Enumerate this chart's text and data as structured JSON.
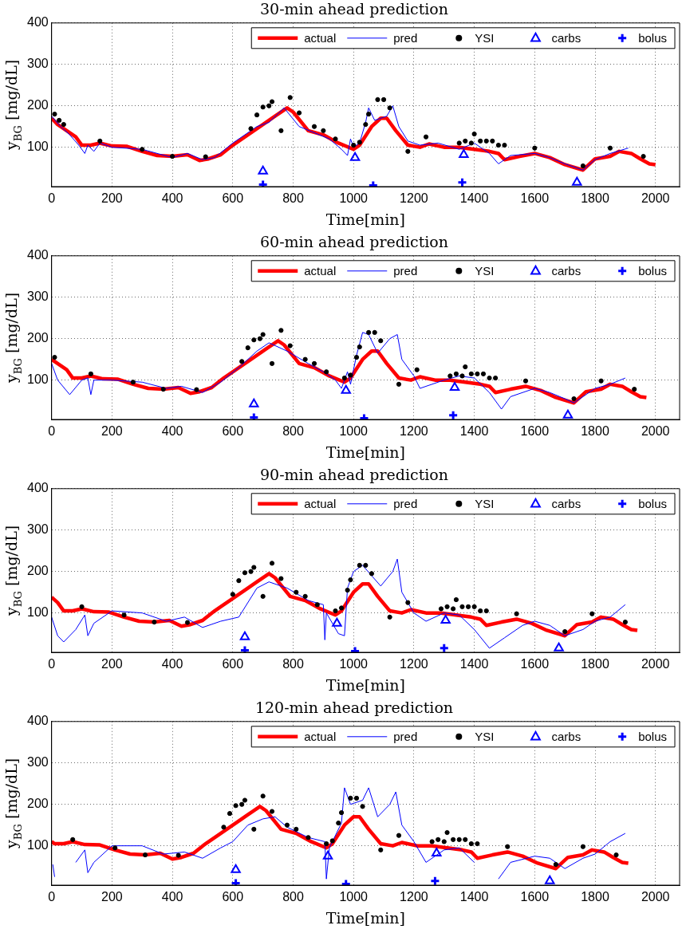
{
  "chart_data": [
    {
      "type": "line",
      "title": "30-min ahead prediction",
      "xlabel": "Time[min]",
      "ylabel": "y$_{BG}$ [mg/dL]",
      "xlim": [
        0,
        2080
      ],
      "ylim": [
        5,
        400
      ],
      "xticks": [
        0,
        200,
        400,
        600,
        800,
        1000,
        1200,
        1400,
        1600,
        1800,
        2000
      ],
      "yticks": [
        100,
        200,
        300,
        400
      ],
      "grid": true,
      "legend": "top right",
      "series": [
        {
          "name": "actual",
          "color": "#ff0000",
          "marker": "none",
          "x": [
            0,
            20,
            50,
            80,
            100,
            130,
            160,
            200,
            250,
            300,
            350,
            400,
            450,
            490,
            520,
            560,
            600,
            650,
            700,
            740,
            780,
            800,
            850,
            900,
            950,
            1000,
            1020,
            1060,
            1090,
            1110,
            1140,
            1180,
            1220,
            1250,
            1300,
            1350,
            1400,
            1450,
            1480,
            1500,
            1550,
            1600,
            1650,
            1700,
            1760,
            1800,
            1850,
            1880,
            1920,
            1950,
            1980,
            2000
          ],
          "values": [
            170,
            155,
            140,
            125,
            105,
            105,
            110,
            103,
            102,
            90,
            80,
            78,
            82,
            68,
            72,
            82,
            105,
            130,
            155,
            175,
            195,
            185,
            140,
            130,
            110,
            95,
            105,
            150,
            170,
            170,
            140,
            105,
            100,
            108,
            100,
            100,
            95,
            90,
            85,
            70,
            78,
            85,
            75,
            58,
            45,
            72,
            78,
            90,
            85,
            72,
            60,
            58
          ]
        },
        {
          "name": "pred",
          "color": "#0000ff",
          "marker": "none",
          "x": [
            0,
            30,
            60,
            90,
            110,
            120,
            140,
            160,
            200,
            300,
            400,
            450,
            500,
            540,
            600,
            680,
            720,
            770,
            820,
            870,
            920,
            960,
            980,
            990,
            1000,
            1020,
            1040,
            1050,
            1070,
            1110,
            1130,
            1150,
            1180,
            1220,
            1280,
            1350,
            1400,
            1450,
            1480,
            1520,
            1600,
            1650,
            1700,
            1760,
            1800,
            1850,
            1910
          ],
          "values": [
            175,
            150,
            130,
            105,
            85,
            105,
            90,
            110,
            100,
            95,
            75,
            85,
            70,
            75,
            110,
            150,
            160,
            195,
            150,
            135,
            120,
            95,
            80,
            120,
            100,
            110,
            160,
            195,
            165,
            175,
            200,
            150,
            115,
            105,
            110,
            95,
            110,
            85,
            60,
            80,
            85,
            75,
            60,
            45,
            70,
            85,
            98
          ]
        },
        {
          "name": "YSI",
          "type": "scatter",
          "color": "#000000",
          "marker": "circle",
          "x": [
            10,
            25,
            40,
            160,
            300,
            400,
            510,
            660,
            680,
            700,
            720,
            730,
            760,
            790,
            820,
            870,
            900,
            940,
            1000,
            1020,
            1040,
            1050,
            1080,
            1100,
            1120,
            1180,
            1240,
            1350,
            1370,
            1390,
            1400,
            1420,
            1440,
            1460,
            1480,
            1500,
            1600,
            1760,
            1850,
            1960
          ],
          "values": [
            180,
            165,
            155,
            115,
            95,
            78,
            77,
            145,
            178,
            197,
            200,
            210,
            140,
            220,
            183,
            150,
            140,
            120,
            105,
            112,
            155,
            180,
            215,
            215,
            195,
            90,
            125,
            110,
            115,
            110,
            132,
            115,
            115,
            115,
            105,
            105,
            98,
            55,
            98,
            78
          ]
        },
        {
          "name": "carbs",
          "type": "scatter",
          "color": "#0000ff",
          "marker": "triangle",
          "x": [
            700,
            1005,
            1365,
            1740
          ],
          "values": [
            42,
            75,
            82,
            15
          ]
        },
        {
          "name": "bolus",
          "type": "scatter",
          "color": "#0000ff",
          "marker": "cross",
          "x": [
            700,
            1065,
            1360
          ],
          "values": [
            10,
            8,
            15
          ]
        }
      ]
    },
    {
      "type": "line",
      "title": "60-min ahead prediction",
      "xlabel": "Time[min]",
      "ylabel": "y$_{BG}$ [mg/dL]",
      "xlim": [
        0,
        2080
      ],
      "ylim": [
        5,
        400
      ],
      "xticks": [
        0,
        200,
        400,
        600,
        800,
        1000,
        1200,
        1400,
        1600,
        1800,
        2000
      ],
      "yticks": [
        100,
        200,
        300,
        400
      ],
      "grid": true,
      "legend": "top right",
      "series": [
        {
          "name": "actual",
          "color": "#ff0000",
          "marker": "none",
          "x": [
            0,
            20,
            50,
            70,
            100,
            130,
            170,
            220,
            270,
            320,
            370,
            420,
            460,
            490,
            530,
            570,
            620,
            670,
            710,
            750,
            770,
            820,
            870,
            920,
            970,
            990,
            1030,
            1060,
            1080,
            1110,
            1150,
            1190,
            1220,
            1270,
            1320,
            1370,
            1420,
            1450,
            1470,
            1520,
            1570,
            1620,
            1670,
            1730,
            1770,
            1820,
            1850,
            1890,
            1920,
            1950,
            1970
          ],
          "values": [
            150,
            140,
            125,
            105,
            105,
            110,
            103,
            102,
            90,
            80,
            78,
            82,
            68,
            72,
            82,
            105,
            130,
            155,
            175,
            195,
            185,
            140,
            130,
            110,
            95,
            105,
            150,
            170,
            170,
            140,
            105,
            100,
            108,
            100,
            100,
            95,
            90,
            85,
            70,
            78,
            85,
            75,
            58,
            45,
            72,
            78,
            90,
            85,
            72,
            60,
            58
          ]
        },
        {
          "name": "pred",
          "color": "#0000ff",
          "marker": "none",
          "x": [
            0,
            20,
            60,
            100,
            120,
            130,
            140,
            200,
            300,
            380,
            430,
            500,
            560,
            620,
            680,
            720,
            780,
            850,
            900,
            940,
            960,
            980,
            990,
            1010,
            1030,
            1050,
            1080,
            1120,
            1145,
            1160,
            1200,
            1220,
            1300,
            1350,
            1400,
            1450,
            1490,
            1520,
            1600,
            1650,
            1700,
            1730,
            1800,
            1850,
            1900
          ],
          "values": [
            140,
            100,
            65,
            100,
            105,
            65,
            100,
            100,
            95,
            80,
            85,
            70,
            95,
            130,
            170,
            190,
            170,
            140,
            120,
            100,
            80,
            120,
            90,
            160,
            215,
            210,
            165,
            200,
            210,
            150,
            110,
            80,
            100,
            110,
            105,
            70,
            30,
            60,
            80,
            70,
            55,
            45,
            80,
            90,
            105
          ]
        },
        {
          "name": "YSI",
          "type": "scatter",
          "color": "#000000",
          "marker": "circle",
          "x": [
            10,
            130,
            270,
            370,
            480,
            630,
            650,
            670,
            690,
            700,
            730,
            760,
            790,
            840,
            870,
            910,
            970,
            990,
            1010,
            1020,
            1050,
            1070,
            1090,
            1150,
            1210,
            1320,
            1340,
            1360,
            1370,
            1390,
            1410,
            1430,
            1450,
            1470,
            1570,
            1730,
            1820,
            1930
          ],
          "values": [
            155,
            115,
            95,
            78,
            77,
            145,
            178,
            197,
            200,
            210,
            140,
            220,
            183,
            150,
            140,
            120,
            105,
            112,
            155,
            180,
            215,
            215,
            195,
            90,
            125,
            110,
            115,
            110,
            132,
            115,
            115,
            115,
            105,
            105,
            98,
            55,
            98,
            78
          ]
        },
        {
          "name": "carbs",
          "type": "scatter",
          "color": "#0000ff",
          "marker": "triangle",
          "x": [
            670,
            975,
            1335,
            1710
          ],
          "values": [
            42,
            75,
            82,
            15
          ]
        },
        {
          "name": "bolus",
          "type": "scatter",
          "color": "#0000ff",
          "marker": "cross",
          "x": [
            670,
            1035,
            1330
          ],
          "values": [
            10,
            8,
            15
          ]
        }
      ]
    },
    {
      "type": "line",
      "title": "90-min ahead prediction",
      "xlabel": "Time[min]",
      "ylabel": "y$_{BG}$ [mg/dL]",
      "xlim": [
        0,
        2080
      ],
      "ylim": [
        5,
        400
      ],
      "xticks": [
        0,
        200,
        400,
        600,
        800,
        1000,
        1200,
        1400,
        1600,
        1800,
        2000
      ],
      "yticks": [
        100,
        200,
        300,
        400
      ],
      "grid": true,
      "legend": "top right",
      "series": [
        {
          "name": "actual",
          "color": "#ff0000",
          "marker": "none",
          "x": [
            0,
            20,
            40,
            70,
            100,
            140,
            190,
            240,
            290,
            340,
            390,
            430,
            460,
            500,
            540,
            590,
            640,
            680,
            720,
            740,
            790,
            840,
            890,
            940,
            960,
            1000,
            1030,
            1050,
            1080,
            1120,
            1160,
            1190,
            1240,
            1290,
            1340,
            1390,
            1420,
            1440,
            1490,
            1540,
            1590,
            1640,
            1700,
            1740,
            1790,
            1820,
            1860,
            1890,
            1920,
            1940
          ],
          "values": [
            138,
            125,
            105,
            105,
            110,
            103,
            102,
            90,
            80,
            78,
            82,
            68,
            72,
            82,
            105,
            130,
            155,
            175,
            195,
            185,
            140,
            130,
            110,
            95,
            105,
            150,
            170,
            170,
            140,
            105,
            100,
            108,
            100,
            100,
            95,
            90,
            85,
            70,
            78,
            85,
            75,
            58,
            45,
            72,
            78,
            90,
            85,
            72,
            60,
            58
          ]
        },
        {
          "name": "pred",
          "color": "#0000ff",
          "marker": "none",
          "x": [
            0,
            20,
            40,
            80,
            110,
            120,
            140,
            200,
            300,
            380,
            440,
            500,
            560,
            620,
            680,
            720,
            780,
            850,
            900,
            905,
            910,
            950,
            970,
            980,
            1000,
            1030,
            1060,
            1090,
            1130,
            1145,
            1160,
            1200,
            1240,
            1300,
            1350,
            1400,
            1450,
            1500,
            1560,
            1600,
            1650,
            1700,
            1760,
            1800,
            1850,
            1900
          ],
          "values": [
            90,
            45,
            30,
            60,
            95,
            45,
            75,
            105,
            100,
            80,
            90,
            65,
            80,
            90,
            160,
            175,
            160,
            130,
            120,
            35,
            100,
            50,
            45,
            160,
            200,
            215,
            190,
            165,
            200,
            230,
            150,
            100,
            80,
            100,
            95,
            60,
            15,
            40,
            70,
            80,
            70,
            45,
            60,
            80,
            90,
            120
          ]
        },
        {
          "name": "YSI",
          "type": "scatter",
          "color": "#000000",
          "marker": "circle",
          "x": [
            100,
            240,
            340,
            450,
            600,
            620,
            640,
            660,
            670,
            700,
            730,
            760,
            810,
            840,
            880,
            940,
            960,
            980,
            990,
            1020,
            1040,
            1060,
            1120,
            1180,
            1290,
            1310,
            1330,
            1340,
            1360,
            1380,
            1400,
            1420,
            1440,
            1540,
            1700,
            1790,
            1900
          ],
          "values": [
            115,
            95,
            78,
            77,
            145,
            178,
            197,
            200,
            210,
            140,
            220,
            183,
            150,
            140,
            120,
            105,
            112,
            155,
            180,
            215,
            215,
            195,
            90,
            125,
            110,
            115,
            110,
            132,
            115,
            115,
            115,
            105,
            105,
            98,
            55,
            98,
            78
          ]
        },
        {
          "name": "carbs",
          "type": "scatter",
          "color": "#0000ff",
          "marker": "triangle",
          "x": [
            640,
            945,
            1305,
            1680
          ],
          "values": [
            42,
            75,
            82,
            15
          ]
        },
        {
          "name": "bolus",
          "type": "scatter",
          "color": "#0000ff",
          "marker": "cross",
          "x": [
            640,
            1005,
            1300
          ],
          "values": [
            10,
            8,
            15
          ]
        }
      ]
    },
    {
      "type": "line",
      "title": "120-min ahead prediction",
      "xlabel": "Time[min]",
      "ylabel": "y$_{BG}$ [mg/dL]",
      "xlim": [
        0,
        2080
      ],
      "ylim": [
        5,
        400
      ],
      "xticks": [
        0,
        200,
        400,
        600,
        800,
        1000,
        1200,
        1400,
        1600,
        1800,
        2000
      ],
      "yticks": [
        100,
        200,
        300,
        400
      ],
      "grid": true,
      "legend": "top right",
      "series": [
        {
          "name": "actual",
          "color": "#ff0000",
          "marker": "none",
          "x": [
            0,
            10,
            40,
            70,
            110,
            160,
            210,
            260,
            310,
            360,
            400,
            430,
            470,
            510,
            560,
            610,
            650,
            690,
            710,
            760,
            810,
            860,
            910,
            930,
            970,
            1000,
            1020,
            1050,
            1090,
            1130,
            1160,
            1210,
            1260,
            1310,
            1360,
            1390,
            1410,
            1460,
            1510,
            1560,
            1610,
            1670,
            1710,
            1760,
            1790,
            1830,
            1860,
            1890,
            1910
          ],
          "values": [
            110,
            105,
            105,
            110,
            103,
            102,
            90,
            80,
            78,
            82,
            68,
            72,
            82,
            105,
            130,
            155,
            175,
            195,
            185,
            140,
            130,
            110,
            95,
            105,
            150,
            170,
            170,
            140,
            105,
            100,
            108,
            100,
            100,
            95,
            90,
            85,
            70,
            78,
            85,
            75,
            58,
            45,
            72,
            78,
            90,
            85,
            72,
            60,
            58
          ]
        },
        {
          "name": "pred",
          "color": "#0000ff",
          "marker": "none",
          "x": [
            4,
            10,
            40,
            80,
            110,
            120,
            140,
            200,
            300,
            370,
            440,
            500,
            560,
            600,
            650,
            700,
            740,
            780,
            850,
            905,
            910,
            920,
            960,
            970,
            990,
            1030,
            1050,
            1080,
            1120,
            1140,
            1160,
            1200,
            1240,
            1300,
            1350,
            1400,
            1430,
            1480,
            1520,
            1600,
            1650,
            1700,
            1760,
            1800,
            1850,
            1900
          ],
          "values": [
            55,
            25,
            null,
            60,
            90,
            35,
            60,
            100,
            100,
            80,
            85,
            70,
            95,
            110,
            150,
            165,
            170,
            145,
            120,
            110,
            20,
            95,
            155,
            240,
            200,
            210,
            240,
            170,
            200,
            230,
            150,
            110,
            60,
            90,
            95,
            60,
            null,
            20,
            60,
            75,
            70,
            45,
            70,
            80,
            110,
            130
          ]
        },
        {
          "name": "YSI",
          "type": "scatter",
          "color": "#000000",
          "marker": "circle",
          "x": [
            70,
            210,
            310,
            420,
            570,
            590,
            610,
            630,
            640,
            670,
            700,
            730,
            780,
            810,
            850,
            910,
            930,
            950,
            960,
            990,
            1010,
            1030,
            1090,
            1150,
            1260,
            1280,
            1300,
            1310,
            1330,
            1350,
            1370,
            1390,
            1410,
            1510,
            1670,
            1760,
            1870
          ],
          "values": [
            115,
            95,
            78,
            77,
            145,
            178,
            197,
            200,
            210,
            140,
            220,
            183,
            150,
            140,
            120,
            105,
            112,
            155,
            180,
            215,
            215,
            195,
            90,
            125,
            110,
            115,
            110,
            132,
            115,
            115,
            115,
            105,
            105,
            98,
            55,
            98,
            78
          ]
        },
        {
          "name": "carbs",
          "type": "scatter",
          "color": "#0000ff",
          "marker": "triangle",
          "x": [
            610,
            915,
            1275,
            1650
          ],
          "values": [
            42,
            75,
            82,
            15
          ]
        },
        {
          "name": "bolus",
          "type": "scatter",
          "color": "#0000ff",
          "marker": "cross",
          "x": [
            610,
            975,
            1270
          ],
          "values": [
            10,
            8,
            15
          ]
        }
      ]
    }
  ]
}
